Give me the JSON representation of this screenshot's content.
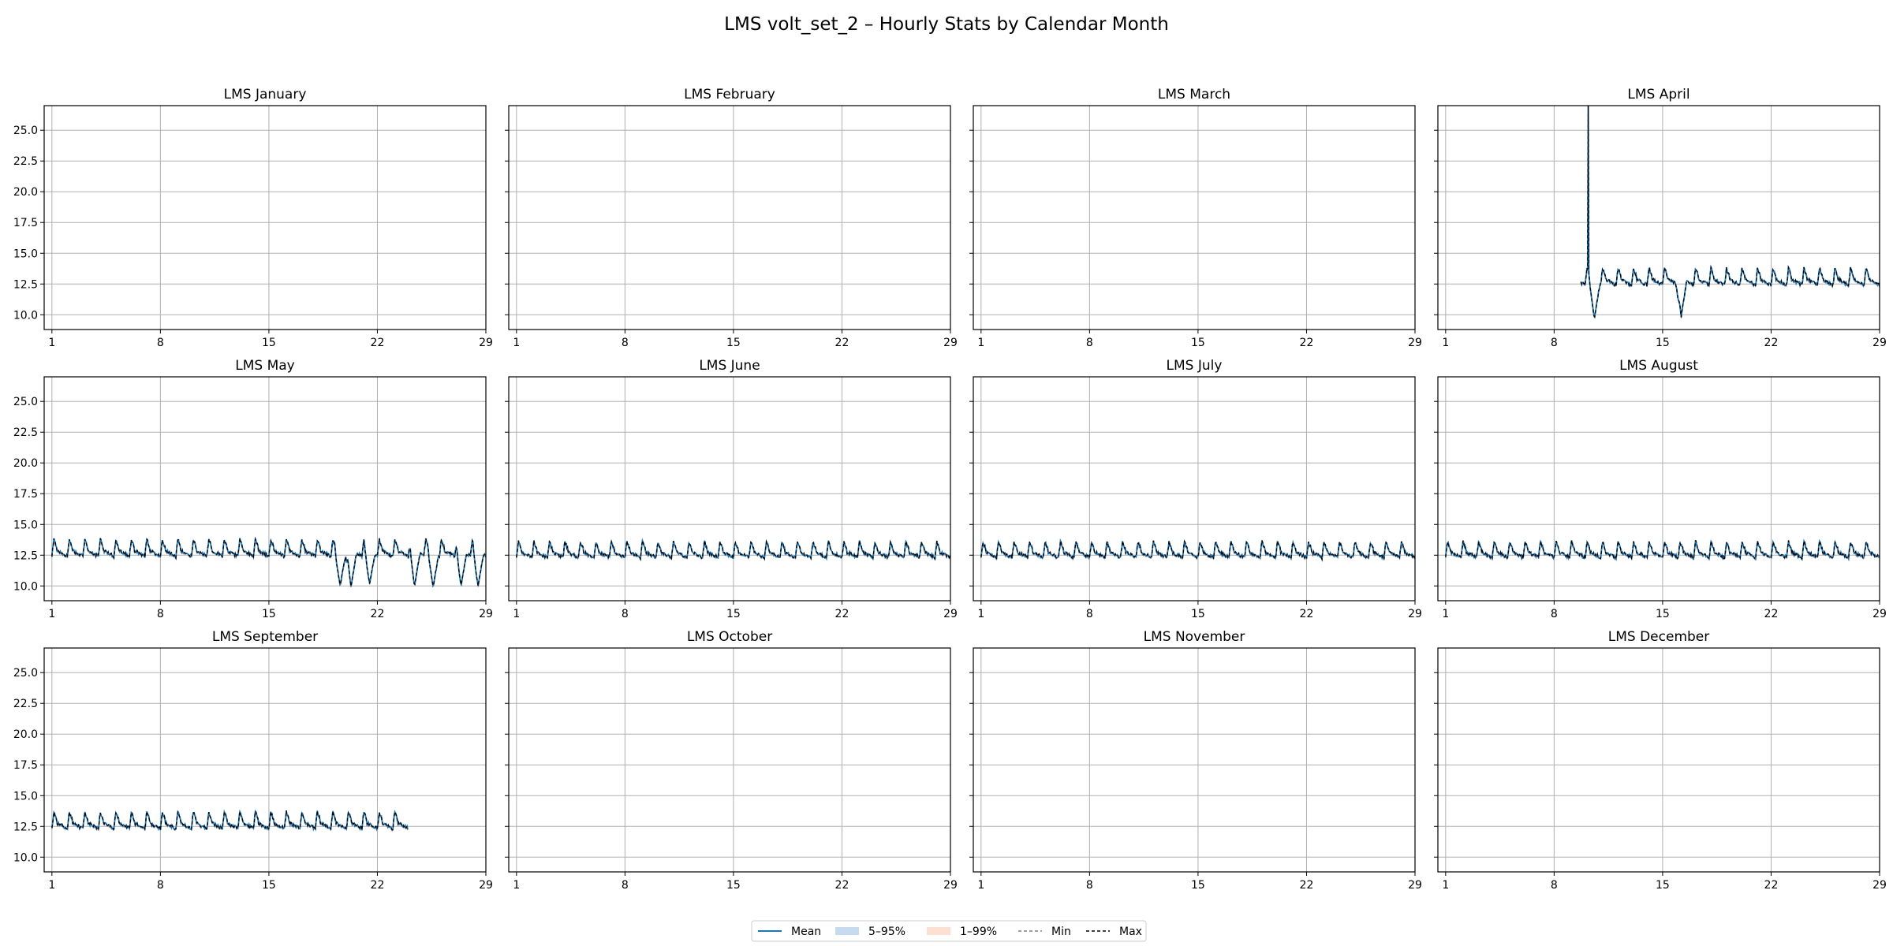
{
  "figure": {
    "title": "LMS volt_set_2 – Hourly Stats by Calendar Month"
  },
  "legend": {
    "placement": "bottom-center",
    "entries": [
      {
        "label": "Mean",
        "kind": "line",
        "color": "#1f77b4",
        "dash": "solid"
      },
      {
        "label": "5–95%",
        "kind": "patch",
        "color": "#c6dbef"
      },
      {
        "label": "1–99%",
        "kind": "patch",
        "color": "#fde0d2"
      },
      {
        "label": "Min",
        "kind": "line",
        "color": "#808080",
        "dash": "dashed"
      },
      {
        "label": "Max",
        "kind": "line",
        "color": "#000000",
        "dash": "dashed"
      }
    ]
  },
  "chart_data": [
    {
      "type": "line",
      "title": "LMS January",
      "month_days": 31,
      "xticks": [
        1,
        8,
        15,
        22,
        29
      ],
      "ylim": [
        8.8,
        27.0
      ],
      "yticks": [
        10.0,
        12.5,
        15.0,
        17.5,
        20.0,
        22.5,
        25.0
      ],
      "grid": true,
      "has_data": false
    },
    {
      "type": "line",
      "title": "LMS February",
      "month_days": 28,
      "xticks": [
        1,
        8,
        15,
        22,
        29
      ],
      "ylim": [
        8.8,
        27.0
      ],
      "yticks": [
        10.0,
        12.5,
        15.0,
        17.5,
        20.0,
        22.5,
        25.0
      ],
      "grid": true,
      "has_data": false
    },
    {
      "type": "line",
      "title": "LMS March",
      "month_days": 31,
      "xticks": [
        1,
        8,
        15,
        22,
        29
      ],
      "ylim": [
        8.8,
        27.0
      ],
      "yticks": [
        10.0,
        12.5,
        15.0,
        17.5,
        20.0,
        22.5,
        25.0
      ],
      "grid": true,
      "has_data": false
    },
    {
      "type": "line",
      "title": "LMS April",
      "month_days": 30,
      "xticks": [
        1,
        8,
        15,
        22,
        29
      ],
      "ylim": [
        8.8,
        27.0
      ],
      "yticks": [
        10.0,
        12.5,
        15.0,
        17.5,
        20.0,
        22.5,
        25.0
      ],
      "grid": true,
      "has_data": true,
      "data_start_day": 9.7,
      "data_end_day": 31.0,
      "daily_low": 12.4,
      "daily_high": 13.8,
      "spikes": [
        {
          "day": 10.2,
          "value": 27.0
        }
      ],
      "dips": [
        {
          "day": 10.6,
          "value": 9.7
        },
        {
          "day": 16.2,
          "value": 9.8
        }
      ]
    },
    {
      "type": "line",
      "title": "LMS May",
      "month_days": 31,
      "xticks": [
        1,
        8,
        15,
        22,
        29
      ],
      "ylim": [
        8.8,
        27.0
      ],
      "yticks": [
        10.0,
        12.5,
        15.0,
        17.5,
        20.0,
        22.5,
        25.0
      ],
      "grid": true,
      "has_data": true,
      "data_start_day": 1.0,
      "data_end_day": 32.0,
      "daily_low": 12.4,
      "daily_high": 13.8,
      "spikes": [],
      "dips": [
        {
          "day": 19.6,
          "value": 10.0
        },
        {
          "day": 20.3,
          "value": 9.9
        },
        {
          "day": 21.5,
          "value": 10.2
        },
        {
          "day": 24.4,
          "value": 10.0
        },
        {
          "day": 25.6,
          "value": 9.9
        },
        {
          "day": 27.4,
          "value": 10.0
        },
        {
          "day": 28.5,
          "value": 10.0
        },
        {
          "day": 29.8,
          "value": 10.1
        }
      ]
    },
    {
      "type": "line",
      "title": "LMS June",
      "month_days": 30,
      "xticks": [
        1,
        8,
        15,
        22,
        29
      ],
      "ylim": [
        8.8,
        27.0
      ],
      "yticks": [
        10.0,
        12.5,
        15.0,
        17.5,
        20.0,
        22.5,
        25.0
      ],
      "grid": true,
      "has_data": true,
      "data_start_day": 1.0,
      "data_end_day": 31.0,
      "daily_low": 12.3,
      "daily_high": 13.6,
      "spikes": [],
      "dips": []
    },
    {
      "type": "line",
      "title": "LMS July",
      "month_days": 31,
      "xticks": [
        1,
        8,
        15,
        22,
        29
      ],
      "ylim": [
        8.8,
        27.0
      ],
      "yticks": [
        10.0,
        12.5,
        15.0,
        17.5,
        20.0,
        22.5,
        25.0
      ],
      "grid": true,
      "has_data": true,
      "data_start_day": 1.0,
      "data_end_day": 32.0,
      "daily_low": 12.3,
      "daily_high": 13.6,
      "spikes": [],
      "dips": []
    },
    {
      "type": "line",
      "title": "LMS August",
      "month_days": 31,
      "xticks": [
        1,
        8,
        15,
        22,
        29
      ],
      "ylim": [
        8.8,
        27.0
      ],
      "yticks": [
        10.0,
        12.5,
        15.0,
        17.5,
        20.0,
        22.5,
        25.0
      ],
      "grid": true,
      "has_data": true,
      "data_start_day": 1.0,
      "data_end_day": 32.0,
      "daily_low": 12.3,
      "daily_high": 13.6,
      "spikes": [],
      "dips": []
    },
    {
      "type": "line",
      "title": "LMS September",
      "month_days": 30,
      "xticks": [
        1,
        8,
        15,
        22,
        29
      ],
      "ylim": [
        8.8,
        27.0
      ],
      "yticks": [
        10.0,
        12.5,
        15.0,
        17.5,
        20.0,
        22.5,
        25.0
      ],
      "grid": true,
      "has_data": true,
      "data_start_day": 1.0,
      "data_end_day": 24.0,
      "daily_low": 12.3,
      "daily_high": 13.7,
      "spikes": [],
      "dips": []
    },
    {
      "type": "line",
      "title": "LMS October",
      "month_days": 31,
      "xticks": [
        1,
        8,
        15,
        22,
        29
      ],
      "ylim": [
        8.8,
        27.0
      ],
      "yticks": [
        10.0,
        12.5,
        15.0,
        17.5,
        20.0,
        22.5,
        25.0
      ],
      "grid": true,
      "has_data": false
    },
    {
      "type": "line",
      "title": "LMS November",
      "month_days": 30,
      "xticks": [
        1,
        8,
        15,
        22,
        29
      ],
      "ylim": [
        8.8,
        27.0
      ],
      "yticks": [
        10.0,
        12.5,
        15.0,
        17.5,
        20.0,
        22.5,
        25.0
      ],
      "grid": true,
      "has_data": false
    },
    {
      "type": "line",
      "title": "LMS December",
      "month_days": 31,
      "xticks": [
        1,
        8,
        15,
        22,
        29
      ],
      "ylim": [
        8.8,
        27.0
      ],
      "yticks": [
        10.0,
        12.5,
        15.0,
        17.5,
        20.0,
        22.5,
        25.0
      ],
      "grid": true,
      "has_data": false
    }
  ]
}
